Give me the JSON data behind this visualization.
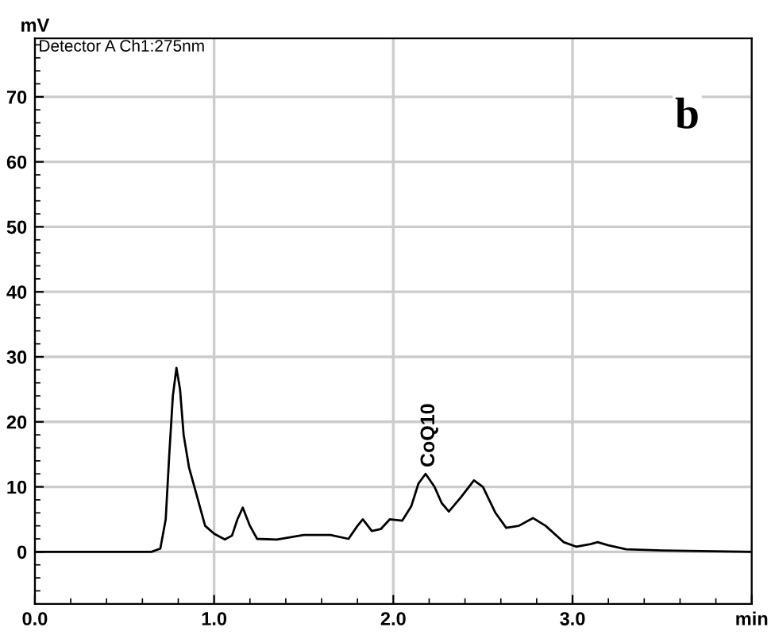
{
  "chart_data": {
    "type": "line",
    "ylabel": "mV",
    "annotations": [
      "Detector A Ch1:275nm",
      {
        "text": "CoQ10",
        "x": 2.2,
        "y": 12
      },
      "b"
    ],
    "x": [
      0,
      0.3,
      0.65,
      0.7,
      0.73,
      0.75,
      0.77,
      0.79,
      0.81,
      0.83,
      0.86,
      0.9,
      0.95,
      1.0,
      1.06,
      1.1,
      1.13,
      1.16,
      1.2,
      1.24,
      1.35,
      1.5,
      1.65,
      1.75,
      1.8,
      1.83,
      1.88,
      1.93,
      1.98,
      2.05,
      2.1,
      2.14,
      2.18,
      2.23,
      2.27,
      2.31,
      2.38,
      2.45,
      2.5,
      2.57,
      2.63,
      2.7,
      2.78,
      2.85,
      2.95,
      3.02,
      3.1,
      3.14,
      3.2,
      3.3,
      3.5,
      4.0
    ],
    "series": [
      {
        "color": "#000000",
        "values": [
          0,
          0,
          0,
          0.5,
          5,
          15,
          24,
          28.3,
          25,
          18,
          13,
          9,
          4,
          2.8,
          1.9,
          2.5,
          5,
          6.8,
          4,
          2,
          1.9,
          2.6,
          2.6,
          2,
          4,
          5,
          3.2,
          3.5,
          5,
          4.8,
          7,
          10.5,
          12,
          10,
          7.5,
          6.2,
          8.5,
          11,
          10,
          6,
          3.7,
          4,
          5.2,
          4,
          1.5,
          0.8,
          1.2,
          1.5,
          1,
          0.4,
          0.2,
          0
        ]
      }
    ],
    "xlim": [
      0,
      4
    ],
    "xticks": [
      {
        "value": 0,
        "label": "0.0"
      },
      {
        "value": 1,
        "label": "1.0"
      },
      {
        "value": 2,
        "label": "2.0"
      },
      {
        "value": 3,
        "label": "3.0"
      },
      {
        "value": 4,
        "label": "min"
      }
    ],
    "ylim": [
      -8,
      79
    ],
    "yticks": [
      0,
      10,
      20,
      30,
      40,
      50,
      60,
      70
    ],
    "grid": true,
    "marker": "none",
    "line_style": "solid",
    "legend": false
  }
}
